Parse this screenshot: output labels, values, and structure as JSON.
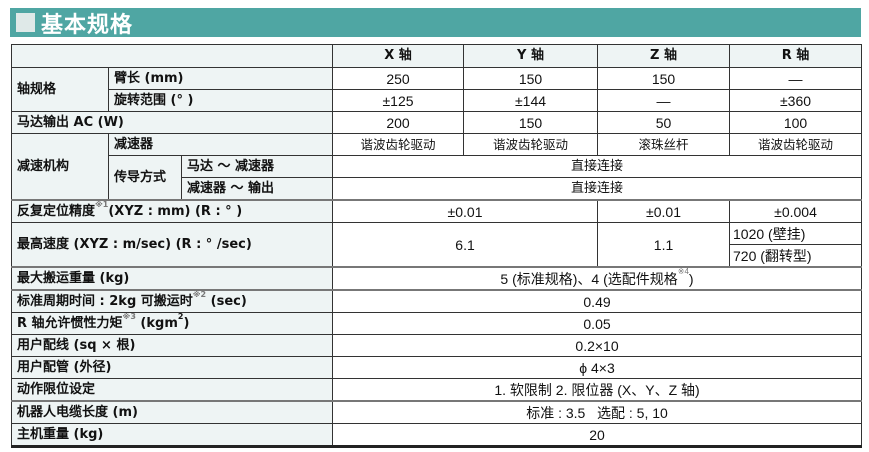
{
  "title": "基本规格",
  "colors": {
    "title_bar": "#4fa6a3",
    "label_bg": "#eef4f4"
  },
  "columns": [
    "X 轴",
    "Y 轴",
    "Z 轴",
    "R 轴"
  ],
  "axis_spec": {
    "label": "轴规格",
    "arm_length": {
      "label": "臂长 (mm)",
      "values": [
        "250",
        "150",
        "150",
        "—"
      ]
    },
    "rotation_range": {
      "label": "旋转范围 (° )",
      "values": [
        "±125",
        "±144",
        "—",
        "±360"
      ]
    }
  },
  "motor_output": {
    "label": "马达输出 AC (W)",
    "values": [
      "200",
      "150",
      "50",
      "100"
    ]
  },
  "reduction": {
    "label": "减速机构",
    "reducer": {
      "label": "减速器",
      "values": [
        "谐波齿轮驱动",
        "谐波齿轮驱动",
        "滚珠丝杆",
        "谐波齿轮驱动"
      ]
    },
    "transmission": {
      "label": "传导方式",
      "motor_to_reducer": {
        "label": "马达 ～ 减速器",
        "value": "直接连接"
      },
      "reducer_to_output": {
        "label": "减速器 ～ 输出",
        "value": "直接连接"
      }
    }
  },
  "repeatability": {
    "label": "反复定位精度",
    "note": "※1",
    "label_suffix": "(XYZ : mm) (R : ° )",
    "xy": "±0.01",
    "z": "±0.01",
    "r": "±0.004"
  },
  "max_speed": {
    "label": "最高速度 (XYZ : m/sec) (R : ° /sec)",
    "xy": "6.1",
    "z": "1.1",
    "r_wall": "1020 (壁挂)",
    "r_flip": "720 (翻转型)"
  },
  "max_payload": {
    "label": "最大搬运重量 (kg)",
    "value_main": "5 (标准规格)、4 (选配件规格",
    "note": "※4",
    "value_end": ")"
  },
  "cycle_time": {
    "label": "标准周期时间 : 2kg 可搬运时",
    "note": "※2",
    "label_suffix": "(sec)",
    "value": "0.49"
  },
  "r_inertia": {
    "label": "R 轴允许惯性力矩",
    "note": "※3",
    "label_suffix": "(kgm",
    "label_sup": "2",
    "label_end": ")",
    "value": "0.05"
  },
  "user_wiring": {
    "label": "用户配线 (sq × 根)",
    "value": "0.2×10"
  },
  "user_piping": {
    "label": "用户配管 (外径)",
    "value": "ϕ 4×3"
  },
  "limit_setting": {
    "label": "动作限位设定",
    "value": "1. 软限制  2. 限位器 (X、Y、Z 轴)"
  },
  "cable_length": {
    "label": "机器人电缆长度 (m)",
    "value": "标准 : 3.5   选配 : 5, 10"
  },
  "weight": {
    "label": "主机重量 (kg)",
    "value": "20"
  }
}
